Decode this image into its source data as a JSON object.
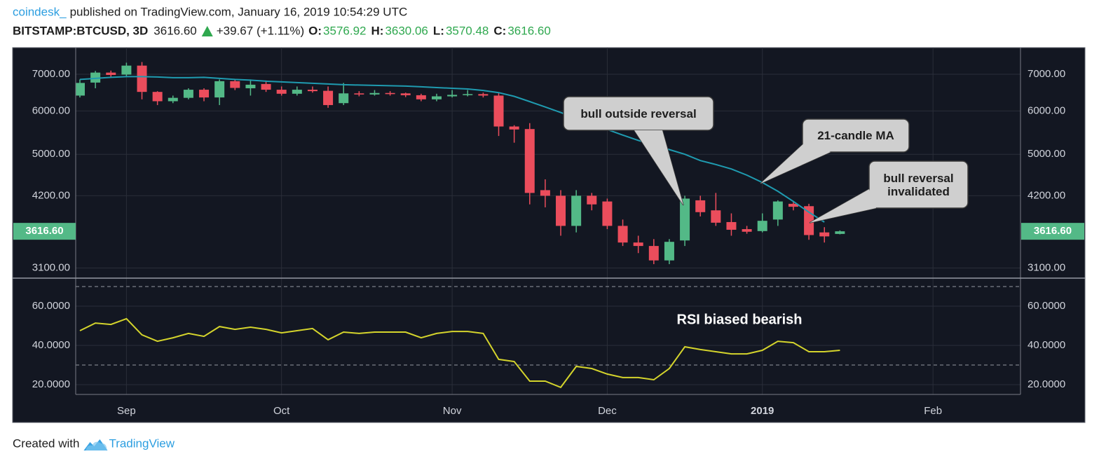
{
  "header": {
    "source": "coindesk_",
    "published": "published on TradingView.com, January 16, 2019 10:54:29 UTC",
    "symbol": "BITSTAMP:BTCUSD, 3D",
    "price": "3616.60",
    "change": "+39.67 (+1.11%)",
    "ohlc": [
      {
        "label": "O:",
        "value": "3576.92"
      },
      {
        "label": "H:",
        "value": "3630.06"
      },
      {
        "label": "L:",
        "value": "3570.48"
      },
      {
        "label": "C:",
        "value": "3616.60"
      }
    ]
  },
  "footer": {
    "text": "Created with",
    "brand": "TradingView"
  },
  "chart_data": [
    {
      "type": "candlestick",
      "categories": [
        null,
        null,
        null,
        "Sep",
        null,
        null,
        null,
        null,
        null,
        null,
        null,
        null,
        null,
        "Oct",
        null,
        null,
        null,
        null,
        null,
        null,
        null,
        null,
        null,
        null,
        "Nov",
        null,
        null,
        null,
        null,
        null,
        null,
        null,
        null,
        null,
        "Dec",
        null,
        null,
        null,
        null,
        null,
        null,
        null,
        null,
        null,
        "2019",
        null,
        null,
        null,
        null,
        null,
        null,
        null,
        null,
        null,
        null,
        "Feb",
        null,
        null,
        null,
        null,
        null
      ],
      "open": [
        6400,
        6760,
        7050,
        6990,
        7260,
        6500,
        6250,
        6340,
        6560,
        6350,
        6800,
        6600,
        6720,
        6560,
        6450,
        6560,
        6530,
        6200,
        6460,
        6430,
        6470,
        6460,
        6410,
        6300,
        6380,
        6420,
        6440,
        6400,
        5620,
        5560,
        4300,
        4200,
        3700,
        4200,
        4100,
        3700,
        3450,
        3400,
        3200,
        3480,
        4120,
        3950,
        3760,
        3650,
        3620,
        3800,
        4060,
        4020,
        3600,
        3576.92,
        null,
        null,
        null,
        null,
        null,
        null,
        null,
        null,
        null,
        null,
        null
      ],
      "high": [
        6850,
        7100,
        7110,
        7350,
        7370,
        6520,
        6400,
        6600,
        6600,
        6850,
        6850,
        6850,
        6820,
        6650,
        6650,
        6650,
        6650,
        6750,
        6520,
        6550,
        6520,
        6480,
        6450,
        6450,
        6550,
        6550,
        6480,
        6480,
        5650,
        5700,
        4500,
        4300,
        4300,
        4250,
        4150,
        3800,
        3550,
        3500,
        3500,
        4200,
        4200,
        4250,
        3900,
        3700,
        3900,
        4120,
        4100,
        4060,
        3680,
        3630.06,
        null,
        null,
        null,
        null,
        null,
        null,
        null,
        null,
        null,
        null,
        null
      ],
      "low": [
        6350,
        6600,
        6900,
        6950,
        6300,
        6150,
        6200,
        6300,
        6250,
        6150,
        6550,
        6400,
        6500,
        6400,
        6400,
        6480,
        6080,
        6150,
        6380,
        6400,
        6400,
        6360,
        6250,
        6250,
        6350,
        6380,
        6350,
        5400,
        5250,
        4050,
        4000,
        3550,
        3600,
        3950,
        3650,
        3400,
        3300,
        3150,
        3150,
        3400,
        3850,
        3700,
        3550,
        3580,
        3600,
        3700,
        3950,
        3490,
        3450,
        3570.48,
        null,
        null,
        null,
        null,
        null,
        null,
        null,
        null,
        null,
        null,
        null
      ],
      "close": [
        6750,
        7050,
        6980,
        7260,
        6500,
        6250,
        6340,
        6560,
        6350,
        6800,
        6610,
        6700,
        6560,
        6450,
        6560,
        6520,
        6150,
        6460,
        6430,
        6470,
        6440,
        6410,
        6300,
        6380,
        6420,
        6440,
        6400,
        5620,
        5550,
        4250,
        4200,
        3700,
        4200,
        4050,
        3700,
        3450,
        3400,
        3200,
        3460,
        4150,
        3920,
        3750,
        3640,
        3610,
        3780,
        4100,
        4010,
        3560,
        3540,
        3616.6,
        null,
        null,
        null,
        null,
        null,
        null,
        null,
        null,
        null,
        null,
        null
      ],
      "ma_values": [
        6850,
        6880,
        6910,
        6930,
        6930,
        6920,
        6900,
        6900,
        6910,
        6880,
        6850,
        6830,
        6800,
        6780,
        6760,
        6740,
        6720,
        6700,
        6690,
        6680,
        6670,
        6660,
        6640,
        6620,
        6600,
        6580,
        6540,
        6480,
        6380,
        6240,
        6100,
        5960,
        5820,
        5680,
        5550,
        5420,
        5300,
        5200,
        5100,
        5000,
        4870,
        4790,
        4700,
        4580,
        4440,
        4280,
        4100,
        3920,
        3760,
        null,
        null,
        null,
        null,
        null,
        null,
        null,
        null,
        null,
        null,
        null,
        null
      ],
      "ma_color": "#1f9bb0",
      "up_color": "#53b987",
      "down_color": "#eb4d5c",
      "log_scale": true,
      "grid": true,
      "ylim": [
        2970,
        7830
      ],
      "yticks": [
        {
          "value": 3100,
          "label": "3100.00"
        },
        {
          "value": 4200,
          "label": "4200.00"
        },
        {
          "value": 5000,
          "label": "5000.00"
        },
        {
          "value": 6000,
          "label": "6000.00"
        },
        {
          "value": 7000,
          "label": "7000.00"
        }
      ],
      "last_price": {
        "value": 3616.6,
        "label": "3616.60"
      },
      "annotations": [
        "bull outside reversal",
        "21-candle MA",
        "bull reversal invalidated"
      ]
    },
    {
      "type": "line",
      "values": [
        47.5,
        51.4,
        50.7,
        53.6,
        45.4,
        42.1,
        43.9,
        46.1,
        44.6,
        49.6,
        48.2,
        49.3,
        48.2,
        46.4,
        47.5,
        48.6,
        42.9,
        46.8,
        46.1,
        46.8,
        46.8,
        46.8,
        43.9,
        46.1,
        47.1,
        47.1,
        46.1,
        32.9,
        31.8,
        21.8,
        21.8,
        18.6,
        29.3,
        28.2,
        25.4,
        23.6,
        23.6,
        22.5,
        28.2,
        39.3,
        37.9,
        36.8,
        35.7,
        35.7,
        37.5,
        42.1,
        41.4,
        36.8,
        36.8,
        37.5,
        null,
        null,
        null,
        null,
        null,
        null,
        null,
        null,
        null,
        null,
        null
      ],
      "color": "#d4d42c",
      "grid": true,
      "ylim": [
        15,
        74.3
      ],
      "yticks": [
        {
          "value": 20,
          "label": "20.0000"
        },
        {
          "value": 40,
          "label": "40.0000"
        },
        {
          "value": 60,
          "label": "60.0000"
        }
      ],
      "bands": [
        30,
        70
      ],
      "annotations": [
        "RSI biased bearish"
      ]
    }
  ]
}
